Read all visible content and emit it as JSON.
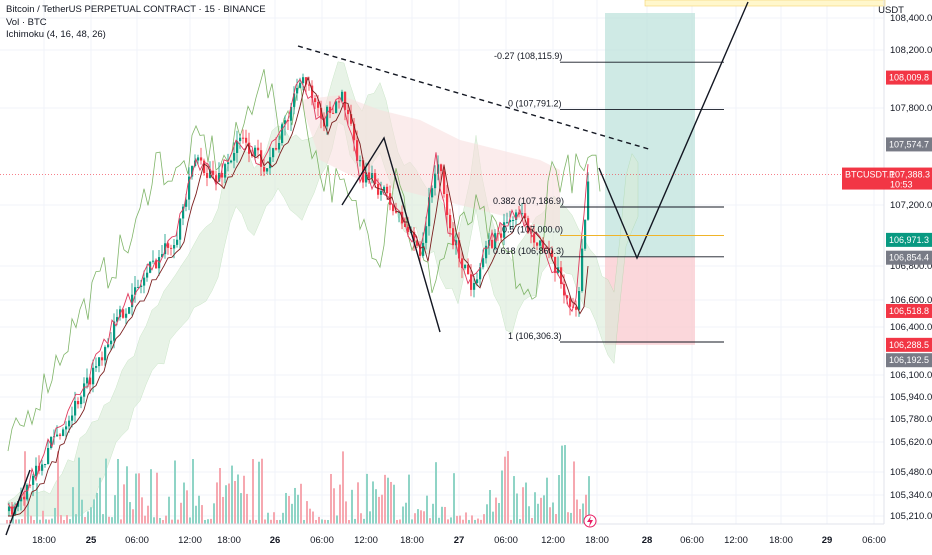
{
  "legend": {
    "title": "Bitcoin / TetherUS PERPETUAL CONTRACT · 15 · BINANCE",
    "volume": "Vol · BTC",
    "ichimoku": "Ichimoku (4, 16, 48, 26)"
  },
  "quote_unit": "USDT",
  "colors": {
    "bull": "#089981",
    "bear": "#f23645",
    "grid": "#f0f3fa",
    "cloud_green": "#d9ecd8",
    "cloud_red": "#f7dcdc",
    "tenkan": "#e03a5d",
    "kijun": "#7b1f1f",
    "chikou": "#6aa84f",
    "target_zone": "#bfe3dc",
    "stop_zone": "#f9c9cf",
    "last_price": "#f23645"
  },
  "chart_data": {
    "type": "candlestick",
    "symbol": "BTCUSDT.P",
    "interval": "15",
    "exchange": "BINANCE",
    "y_axis_ticks": [
      "108,400.0",
      "108,200.0",
      "107,800.0",
      "107,200.0",
      "106,800.0",
      "106,600.0",
      "106,400.0",
      "106,100.0",
      "105,940.0",
      "105,780.0",
      "105,620.0",
      "105,480.0",
      "105,340.0",
      "105,210.0"
    ],
    "y_axis_tick_values": [
      108400,
      108200,
      107800,
      107200,
      106800,
      106600,
      106400,
      106100,
      105940,
      105780,
      105620,
      105480,
      105340,
      105210
    ],
    "x_axis_labels": [
      "18:00",
      "25",
      "06:00",
      "12:00",
      "18:00",
      "26",
      "06:00",
      "12:00",
      "18:00",
      "27",
      "06:00",
      "12:00",
      "18:00",
      "28",
      "06:00",
      "12:00",
      "18:00",
      "29",
      "06:00"
    ],
    "x_axis_bold": [
      "25",
      "26",
      "27",
      "28",
      "29"
    ],
    "price_tags": [
      {
        "label": "108,009.8",
        "value": 108009.8,
        "color": "#f23645"
      },
      {
        "label": "107,574.7",
        "value": 107574.7,
        "color": "#787b86"
      },
      {
        "label": "BTCUSDT.P",
        "value": 107388.3,
        "color": "#f23645",
        "sub": "10:53",
        "price": "107,388.3"
      },
      {
        "label": "106,971.3",
        "value": 106971.3,
        "color": "#089981"
      },
      {
        "label": "106,854.4",
        "value": 106854.4,
        "color": "#787b86"
      },
      {
        "label": "106,518.8",
        "value": 106518.8,
        "color": "#f23645"
      },
      {
        "label": "106,288.5",
        "value": 106288.5,
        "color": "#f23645"
      },
      {
        "label": "106,192.5",
        "value": 106192.5,
        "color": "#787b86"
      }
    ],
    "fibonacci_levels": [
      {
        "label": "-0.27 (108,115.9)",
        "ratio": -0.27,
        "price": 108115.9
      },
      {
        "label": "0 (107,791.2)",
        "ratio": 0,
        "price": 107791.2
      },
      {
        "label": "0.382 (107,186.9)",
        "ratio": 0.382,
        "price": 107186.9
      },
      {
        "label": "0.5 (107,000.0)",
        "ratio": 0.5,
        "price": 107000.0
      },
      {
        "label": "0.618 (106,860.3)",
        "ratio": 0.618,
        "price": 106860.3
      },
      {
        "label": "1 (106,306.3)",
        "ratio": 1,
        "price": 106306.3
      }
    ],
    "last_price": 107388.3,
    "countdown": "10:53",
    "legend_position": "top-left",
    "grid": true
  }
}
